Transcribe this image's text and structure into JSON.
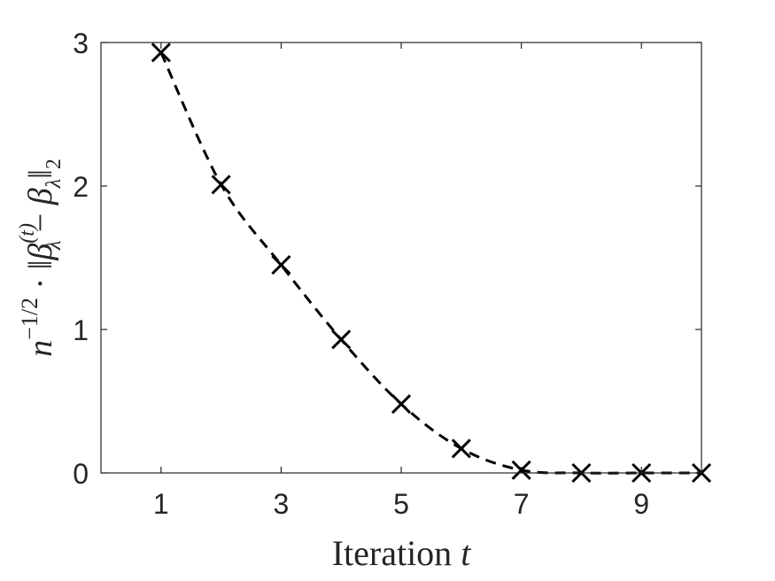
{
  "chart_data": {
    "type": "line",
    "xlabel": "Iteration",
    "xlabel_var": "t",
    "ylabel": {
      "prefix_base": "n",
      "prefix_exp": "−1/2",
      "dot": " · ‖",
      "beta1": "β",
      "beta1_sup": "(t)",
      "beta1_sub": "λ",
      "minus": " − ",
      "beta2": "β",
      "beta2_sub": "λ",
      "suffix": "‖",
      "suffix_sub": "2"
    },
    "xlim": [
      0,
      10
    ],
    "ylim": [
      0,
      3
    ],
    "x_ticks": [
      1,
      3,
      5,
      7,
      9
    ],
    "y_ticks": [
      0,
      1,
      2,
      3
    ],
    "grid": false,
    "line_style": "dashed",
    "marker": "x",
    "color": "#000000",
    "series": [
      {
        "x": [
          1,
          2,
          3,
          4,
          5,
          6,
          7,
          8,
          9,
          10
        ],
        "values": [
          2.93,
          2.01,
          1.45,
          0.93,
          0.48,
          0.17,
          0.02,
          0.0,
          0.0,
          0.0
        ]
      }
    ]
  }
}
